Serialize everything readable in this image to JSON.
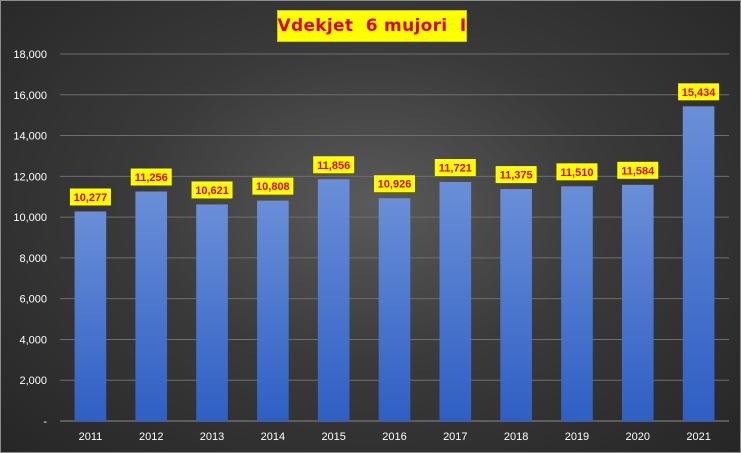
{
  "chart_data": {
    "type": "bar",
    "title": "Vdekjet  6 mujori  I",
    "xlabel": "",
    "ylabel": "",
    "categories": [
      "2011",
      "2012",
      "2013",
      "2014",
      "2015",
      "2016",
      "2017",
      "2018",
      "2019",
      "2020",
      "2021"
    ],
    "values": [
      10277,
      11256,
      10621,
      10808,
      11856,
      10926,
      11721,
      11375,
      11510,
      11584,
      15434
    ],
    "value_labels": [
      "10,277",
      "11,256",
      "10,621",
      "10,808",
      "11,856",
      "10,926",
      "11,721",
      "11,375",
      "11,510",
      "11,584",
      "15,434"
    ],
    "ylim": [
      0,
      18000
    ],
    "y_ticks": [
      0,
      2000,
      4000,
      6000,
      8000,
      10000,
      12000,
      14000,
      16000,
      18000
    ],
    "y_tick_labels": [
      "-",
      "2,000",
      "4,000",
      "6,000",
      "8,000",
      "10,000",
      "12,000",
      "14,000",
      "16,000",
      "18,000"
    ],
    "grid": true,
    "legend": "none",
    "colors": {
      "bar_top": "#6a8fd8",
      "bar_bottom": "#2f5fc4",
      "label_bg": "#ffff00",
      "label_text": "#e00000",
      "title_bg": "#ffff00",
      "title_text": "#e00000",
      "gridline": "#6e6e6e"
    }
  }
}
